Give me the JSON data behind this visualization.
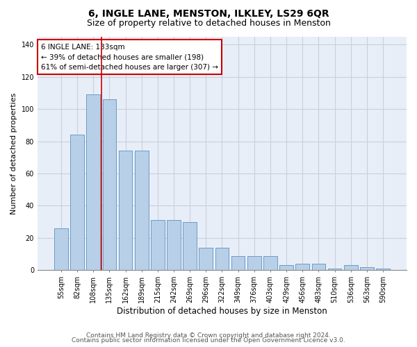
{
  "title1": "6, INGLE LANE, MENSTON, ILKLEY, LS29 6QR",
  "title2": "Size of property relative to detached houses in Menston",
  "xlabel": "Distribution of detached houses by size in Menston",
  "ylabel": "Number of detached properties",
  "categories": [
    "55sqm",
    "82sqm",
    "108sqm",
    "135sqm",
    "162sqm",
    "189sqm",
    "215sqm",
    "242sqm",
    "269sqm",
    "296sqm",
    "322sqm",
    "349sqm",
    "376sqm",
    "403sqm",
    "429sqm",
    "456sqm",
    "483sqm",
    "510sqm",
    "536sqm",
    "563sqm",
    "590sqm"
  ],
  "values": [
    26,
    84,
    109,
    106,
    74,
    74,
    31,
    31,
    30,
    14,
    14,
    9,
    9,
    9,
    3,
    4,
    4,
    1,
    3,
    2,
    1
  ],
  "bar_color": "#b8cfe8",
  "bar_edge_color": "#6a9cc4",
  "vline_x": 2.5,
  "vline_color": "#cc0000",
  "annotation_text": "6 INGLE LANE: 133sqm\n← 39% of detached houses are smaller (198)\n61% of semi-detached houses are larger (307) →",
  "annotation_box_color": "#ffffff",
  "annotation_box_edge": "#cc0000",
  "ylim": [
    0,
    145
  ],
  "yticks": [
    0,
    20,
    40,
    60,
    80,
    100,
    120,
    140
  ],
  "grid_color": "#c8d0dc",
  "bg_color": "#e8eef8",
  "footer1": "Contains HM Land Registry data © Crown copyright and database right 2024.",
  "footer2": "Contains public sector information licensed under the Open Government Licence v3.0.",
  "title1_fontsize": 10,
  "title2_fontsize": 9,
  "xlabel_fontsize": 8.5,
  "ylabel_fontsize": 8,
  "tick_fontsize": 7,
  "annotation_fontsize": 7.5,
  "footer_fontsize": 6.5
}
